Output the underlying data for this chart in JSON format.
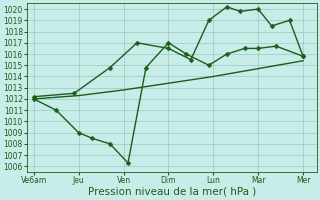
{
  "x_labels": [
    "Ve6am",
    "Jeu",
    "Ven",
    "Dim",
    "Lun",
    "Mar",
    "Mer"
  ],
  "x_tick_pos": [
    0,
    1,
    2,
    3,
    4,
    5,
    6
  ],
  "line1_no_marker": {
    "x": [
      0,
      1,
      2,
      3,
      4,
      5,
      6
    ],
    "y": [
      1012.0,
      1012.3,
      1012.8,
      1013.4,
      1014.0,
      1014.7,
      1015.4
    ]
  },
  "line2_wiggly": {
    "x": [
      0,
      0.5,
      1.0,
      1.3,
      1.7,
      2.1,
      2.5,
      3.0,
      3.4,
      3.9,
      4.3,
      4.7,
      5.0,
      5.4,
      6.0
    ],
    "y": [
      1012.0,
      1011.0,
      1009.0,
      1008.5,
      1008.0,
      1006.3,
      1014.8,
      1017.0,
      1016.0,
      1015.0,
      1016.0,
      1016.5,
      1016.5,
      1016.7,
      1015.8
    ]
  },
  "line3_peak": {
    "x": [
      0,
      0.9,
      1.7,
      2.3,
      3.0,
      3.5,
      3.9,
      4.3,
      4.6,
      5.0,
      5.3,
      5.7,
      6.0
    ],
    "y": [
      1012.2,
      1012.5,
      1014.8,
      1017.0,
      1016.5,
      1015.5,
      1019.0,
      1020.2,
      1019.8,
      1020.0,
      1018.5,
      1019.0,
      1015.8
    ]
  },
  "ylim_min": 1005.5,
  "ylim_max": 1020.5,
  "yticks": [
    1006,
    1007,
    1008,
    1009,
    1010,
    1011,
    1012,
    1013,
    1014,
    1015,
    1016,
    1017,
    1018,
    1019,
    1020
  ],
  "xlabel": "Pression niveau de la mer( hPa )",
  "bg_color": "#c8ece8",
  "grid_color": "#90c0b8",
  "line_color": "#1a5e1a",
  "axis_color": "#1a5e1a",
  "tick_fontsize": 5.5,
  "xlabel_fontsize": 7.5,
  "lw": 1.0,
  "markersize": 2.5
}
